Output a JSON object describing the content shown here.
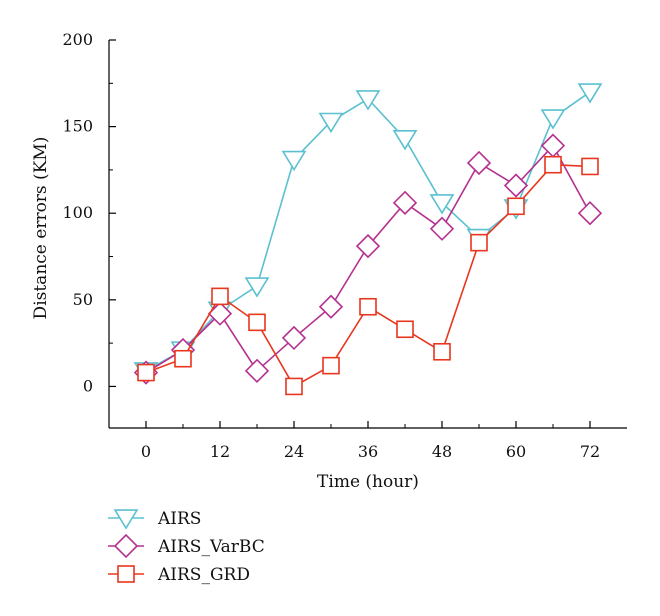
{
  "chart_data": {
    "type": "line",
    "xlabel": "Time (hour)",
    "ylabel": "Distance errors (KM)",
    "xlim": [
      -6,
      78
    ],
    "ylim": [
      -24,
      200
    ],
    "x_ticks": [
      0,
      12,
      24,
      36,
      48,
      60,
      72
    ],
    "y_ticks": [
      0,
      50,
      100,
      150,
      200
    ],
    "grid": false,
    "legend_position": "below",
    "series": [
      {
        "name": "AIRS",
        "color": "#5bc0cf",
        "marker": "triangle-down",
        "x": [
          0,
          6,
          12,
          18,
          24,
          30,
          36,
          42,
          48,
          54,
          60,
          66,
          72
        ],
        "y": [
          9,
          21,
          44,
          58,
          131,
          153,
          166,
          143,
          106,
          86,
          103,
          155,
          170
        ]
      },
      {
        "name": "AIRS_VarBC",
        "color": "#b5318f",
        "marker": "diamond",
        "x": [
          0,
          6,
          12,
          18,
          24,
          30,
          36,
          42,
          48,
          54,
          60,
          66,
          72
        ],
        "y": [
          8,
          21,
          42,
          9,
          28,
          46,
          81,
          106,
          91,
          129,
          116,
          139,
          100
        ]
      },
      {
        "name": "AIRS_GRD",
        "color": "#e8361f",
        "marker": "square",
        "x": [
          0,
          6,
          12,
          18,
          24,
          30,
          36,
          42,
          48,
          54,
          60,
          66,
          72
        ],
        "y": [
          8,
          16,
          52,
          37,
          0,
          12,
          46,
          33,
          20,
          83,
          104,
          128,
          127
        ]
      }
    ]
  }
}
